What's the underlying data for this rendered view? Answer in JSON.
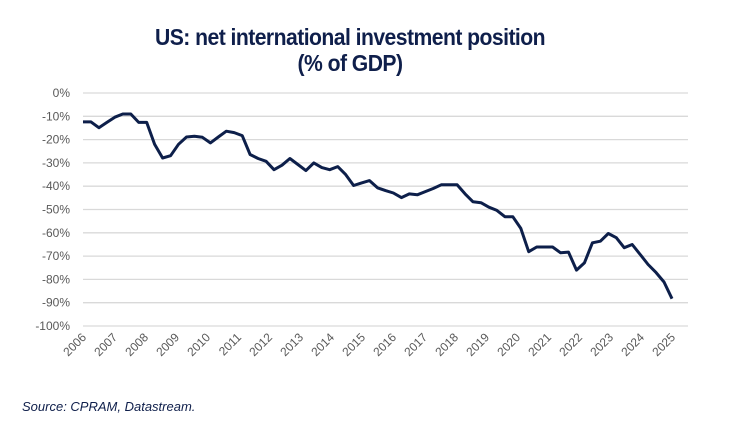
{
  "chart_data": {
    "type": "line",
    "title": "US: net international investment position",
    "subtitle": "(% of GDP)",
    "source": "Source: CPRAM, Datastream.",
    "x_range": [
      2006,
      2025
    ],
    "xticks": [
      "2006",
      "2007",
      "2008",
      "2009",
      "2010",
      "2011",
      "2012",
      "2013",
      "2014",
      "2015",
      "2016",
      "2017",
      "2018",
      "2019",
      "2020",
      "2021",
      "2022",
      "2023",
      "2024",
      "2025"
    ],
    "ylim": [
      -100,
      0
    ],
    "yticks": [
      0,
      -10,
      -20,
      -30,
      -40,
      -50,
      -60,
      -70,
      -80,
      -90,
      -100
    ],
    "ytick_labels": [
      "0%",
      "-10%",
      "-20%",
      "-30%",
      "-40%",
      "-50%",
      "-60%",
      "-70%",
      "-80%",
      "-90%",
      "-100%"
    ],
    "grid": "horizontal",
    "line_color": "#0d1f4a",
    "series": [
      {
        "values": [
          -12.4,
          -12.4,
          -14.9,
          -12.6,
          -10.4,
          -9,
          -9,
          -12.6,
          -12.6,
          -22,
          -27.9,
          -26.9,
          -22,
          -18.9,
          -18.6,
          -19,
          -21.4,
          -18.9,
          -16.4,
          -17,
          -18.3,
          -26.4,
          -28.1,
          -29.3,
          -32.9,
          -31,
          -28.1,
          -30.7,
          -33.3,
          -30,
          -32,
          -32.9,
          -31.6,
          -35,
          -39.7,
          -38.6,
          -37.6,
          -40.7,
          -41.9,
          -42.9,
          -44.9,
          -43.3,
          -43.7,
          -42.3,
          -41,
          -39.4,
          -39.4,
          -39.4,
          -43.3,
          -46.7,
          -47.1,
          -49,
          -50.4,
          -53.1,
          -53.1,
          -58.1,
          -68.1,
          -66.1,
          -66.1,
          -66.1,
          -68.6,
          -68.3,
          -76,
          -72.9,
          -64.3,
          -63.6,
          -60.3,
          -62.1,
          -66.4,
          -65,
          -69.3,
          -73.6,
          -77.1,
          -81.1,
          -88.3
        ]
      }
    ]
  }
}
